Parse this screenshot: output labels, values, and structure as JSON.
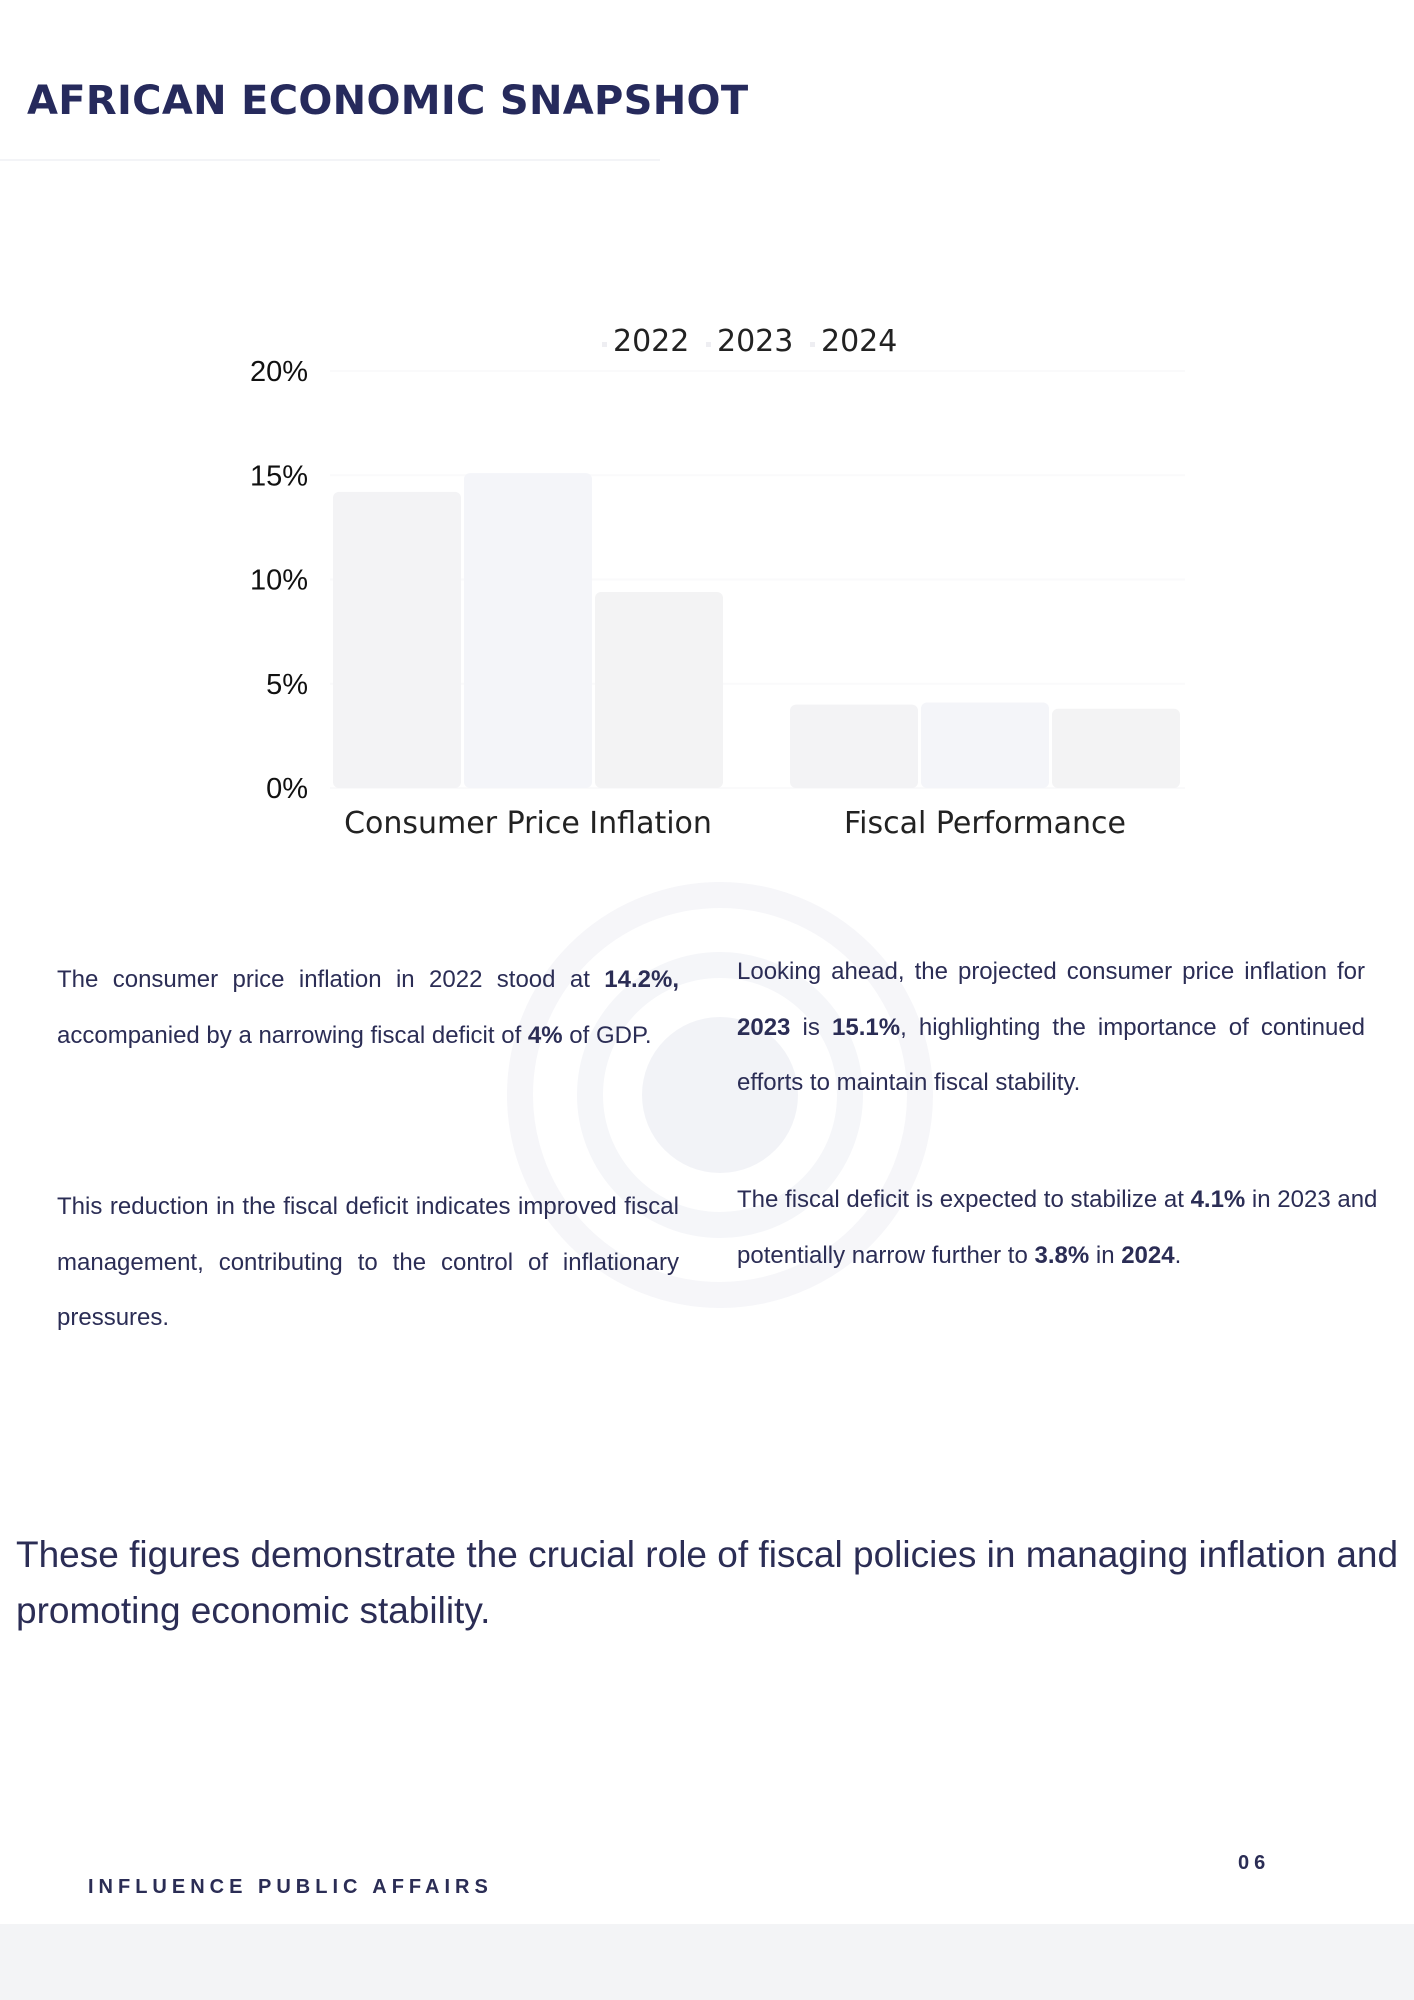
{
  "header": {
    "title": "AFRICAN ECONOMIC SNAPSHOT"
  },
  "chart_data": {
    "type": "bar",
    "categories": [
      "Consumer Price Inflation",
      "Fiscal Performance"
    ],
    "series": [
      {
        "name": "2022",
        "values": [
          14.2,
          4.0
        ],
        "color": "#f3f3f5"
      },
      {
        "name": "2023",
        "values": [
          15.1,
          4.1
        ],
        "color": "#f4f5f9"
      },
      {
        "name": "2024",
        "values": [
          9.4,
          3.8
        ],
        "color": "#f3f3f4"
      }
    ],
    "yticks": [
      "0%",
      "5%",
      "10%",
      "15%",
      "20%"
    ],
    "ytick_values": [
      0,
      5,
      10,
      15,
      20
    ],
    "ylim": [
      0,
      20
    ],
    "legend": "top-center",
    "grid": true
  },
  "paragraphs": {
    "left1": {
      "t1": "The consumer price inflation in 2022 stood at ",
      "b1": "14.2%,",
      "t2": " accompanied by a narrowing fiscal deficit of ",
      "b2": "4%",
      "t3": " of GDP."
    },
    "left2": {
      "t1": "This reduction in the fiscal deficit indicates improved fiscal management, contributing to the control of inflationary pressures."
    },
    "right1": {
      "t1": "Looking ahead, the projected consumer price inflation for ",
      "b1": "2023",
      "t2": " is ",
      "b2": "15.1%",
      "t3": ", highlighting the importance of continued efforts to maintain fiscal stability."
    },
    "right2": {
      "t1": "The fiscal deficit is expected to stabilize at ",
      "b1": "4.1%",
      "t2": " in 2023 and potentially narrow further to ",
      "b2": "3.8%",
      "t3": " in ",
      "b3": "2024",
      "t4": "."
    }
  },
  "closing": "These figures demonstrate the crucial role of fiscal policies in managing inflation and promoting economic stability.",
  "footer": {
    "brand": "INFLUENCE PUBLIC AFFAIRS",
    "page": "06"
  }
}
